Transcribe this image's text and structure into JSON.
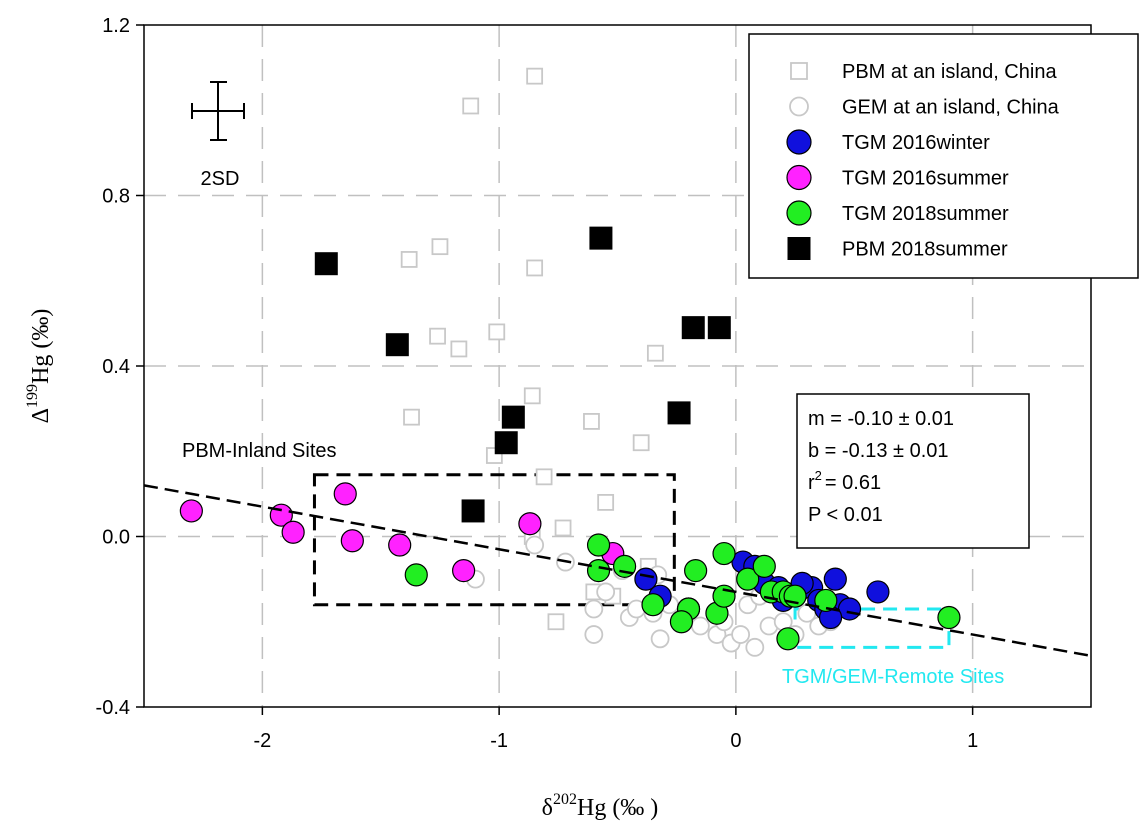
{
  "chart_data": {
    "type": "scatter",
    "xlabel_prefix": "δ",
    "xlabel_sup": "202",
    "xlabel_suffix": "Hg (‰ )",
    "ylabel_prefix": "Δ",
    "ylabel_sup": "199",
    "ylabel_suffix": "Hg (‰)",
    "xlim": [
      -2.5,
      1.5
    ],
    "ylim": [
      -0.4,
      1.2
    ],
    "xticks": [
      -2,
      -1,
      0,
      1
    ],
    "xtick_labels": [
      "-2",
      "-1",
      "0",
      "1"
    ],
    "yticks": [
      -0.4,
      0.0,
      0.4,
      0.8,
      1.2
    ],
    "ytick_labels": [
      "-0.4",
      "0.0",
      "0.4",
      "0.8",
      "1.2"
    ],
    "grid": true,
    "legend_position": "top-right",
    "series": [
      {
        "name": "PBM at an island, China",
        "marker": "square-open",
        "color": "#c8c8c8",
        "points": [
          [
            -1.12,
            1.01
          ],
          [
            -0.85,
            1.08
          ],
          [
            -1.38,
            0.65
          ],
          [
            -1.25,
            0.68
          ],
          [
            -0.85,
            0.63
          ],
          [
            -1.26,
            0.47
          ],
          [
            -1.17,
            0.44
          ],
          [
            -1.01,
            0.48
          ],
          [
            -0.34,
            0.43
          ],
          [
            -1.37,
            0.28
          ],
          [
            -0.86,
            0.33
          ],
          [
            -0.61,
            0.27
          ],
          [
            -0.4,
            0.22
          ],
          [
            -1.02,
            0.19
          ],
          [
            -0.81,
            0.14
          ],
          [
            -0.55,
            0.08
          ],
          [
            -0.73,
            0.02
          ],
          [
            -0.86,
            0.0
          ],
          [
            -0.76,
            -0.2
          ],
          [
            -0.6,
            -0.13
          ],
          [
            -0.37,
            -0.07
          ],
          [
            -0.52,
            -0.14
          ]
        ]
      },
      {
        "name": "GEM at an island, China",
        "marker": "circle-open",
        "color": "#c8c8c8",
        "points": [
          [
            -1.1,
            -0.1
          ],
          [
            -0.72,
            -0.06
          ],
          [
            -0.6,
            -0.17
          ],
          [
            -0.6,
            -0.23
          ],
          [
            -0.55,
            -0.13
          ],
          [
            -0.45,
            -0.19
          ],
          [
            -0.42,
            -0.17
          ],
          [
            -0.35,
            -0.18
          ],
          [
            -0.32,
            -0.24
          ],
          [
            -0.28,
            -0.16
          ],
          [
            -0.2,
            -0.17
          ],
          [
            -0.15,
            -0.21
          ],
          [
            -0.08,
            -0.23
          ],
          [
            -0.05,
            -0.2
          ],
          [
            -0.02,
            -0.25
          ],
          [
            0.02,
            -0.23
          ],
          [
            0.05,
            -0.16
          ],
          [
            0.08,
            -0.26
          ],
          [
            0.1,
            -0.14
          ],
          [
            0.14,
            -0.21
          ],
          [
            0.2,
            -0.2
          ],
          [
            0.25,
            -0.23
          ],
          [
            0.3,
            -0.18
          ],
          [
            0.35,
            -0.21
          ],
          [
            0.4,
            -0.2
          ],
          [
            -0.85,
            -0.02
          ],
          [
            -0.48,
            -0.08
          ],
          [
            -0.33,
            -0.09
          ]
        ]
      },
      {
        "name": "TGM 2016winter",
        "marker": "circle-filled",
        "color": "#1010dd",
        "points": [
          [
            -0.38,
            -0.1
          ],
          [
            -0.32,
            -0.14
          ],
          [
            -0.2,
            -0.17
          ],
          [
            0.03,
            -0.06
          ],
          [
            0.08,
            -0.07
          ],
          [
            0.12,
            -0.11
          ],
          [
            0.18,
            -0.12
          ],
          [
            0.2,
            -0.15
          ],
          [
            0.26,
            -0.13
          ],
          [
            0.32,
            -0.12
          ],
          [
            0.35,
            -0.15
          ],
          [
            0.38,
            -0.17
          ],
          [
            0.42,
            -0.1
          ],
          [
            0.44,
            -0.16
          ],
          [
            0.48,
            -0.17
          ],
          [
            0.6,
            -0.13
          ],
          [
            0.4,
            -0.19
          ],
          [
            0.28,
            -0.11
          ]
        ]
      },
      {
        "name": "TGM 2016summer",
        "marker": "circle-filled",
        "color": "#ff22ff",
        "points": [
          [
            -2.3,
            0.06
          ],
          [
            -1.92,
            0.05
          ],
          [
            -1.87,
            0.01
          ],
          [
            -1.65,
            0.1
          ],
          [
            -1.62,
            -0.01
          ],
          [
            -1.42,
            -0.02
          ],
          [
            -1.15,
            -0.08
          ],
          [
            -0.87,
            0.03
          ],
          [
            -0.52,
            -0.04
          ]
        ]
      },
      {
        "name": "TGM 2018summer",
        "marker": "circle-filled",
        "color": "#22ee22",
        "points": [
          [
            -1.35,
            -0.09
          ],
          [
            -0.58,
            -0.02
          ],
          [
            -0.58,
            -0.08
          ],
          [
            -0.47,
            -0.07
          ],
          [
            -0.35,
            -0.16
          ],
          [
            -0.2,
            -0.17
          ],
          [
            -0.17,
            -0.08
          ],
          [
            -0.08,
            -0.18
          ],
          [
            -0.05,
            -0.14
          ],
          [
            -0.05,
            -0.04
          ],
          [
            0.05,
            -0.1
          ],
          [
            0.12,
            -0.07
          ],
          [
            0.15,
            -0.13
          ],
          [
            0.2,
            -0.13
          ],
          [
            0.23,
            -0.14
          ],
          [
            0.25,
            -0.14
          ],
          [
            0.38,
            -0.15
          ],
          [
            0.22,
            -0.24
          ],
          [
            -0.23,
            -0.2
          ],
          [
            0.9,
            -0.19
          ]
        ]
      },
      {
        "name": "PBM 2018summer",
        "marker": "square-filled",
        "color": "#000000",
        "points": [
          [
            -1.73,
            0.64
          ],
          [
            -1.43,
            0.45
          ],
          [
            -0.57,
            0.7
          ],
          [
            -0.18,
            0.49
          ],
          [
            -0.07,
            0.49
          ],
          [
            -0.24,
            0.29
          ],
          [
            -0.94,
            0.28
          ],
          [
            -0.97,
            0.22
          ],
          [
            -1.11,
            0.06
          ]
        ]
      }
    ],
    "regression_line": {
      "slope": -0.1,
      "intercept": -0.13
    },
    "error_bar_label": "2SD",
    "regions": [
      {
        "label": "PBM-Inland Sites",
        "color": "#000000",
        "xrange": [
          -1.78,
          -0.26
        ],
        "yrange": [
          -0.16,
          0.145
        ]
      },
      {
        "label": "TGM/GEM-Remote Sites",
        "color": "#22e8f0",
        "xrange": [
          0.25,
          0.9
        ],
        "yrange": [
          -0.26,
          -0.17
        ]
      }
    ],
    "stats_box": [
      "m = -0.10 ±  0.01",
      "b = -0.13 ±  0.01",
      "= 0.61",
      "P < 0.01"
    ],
    "stats_r2_prefix": "r",
    "stats_r2_sup": "2"
  }
}
